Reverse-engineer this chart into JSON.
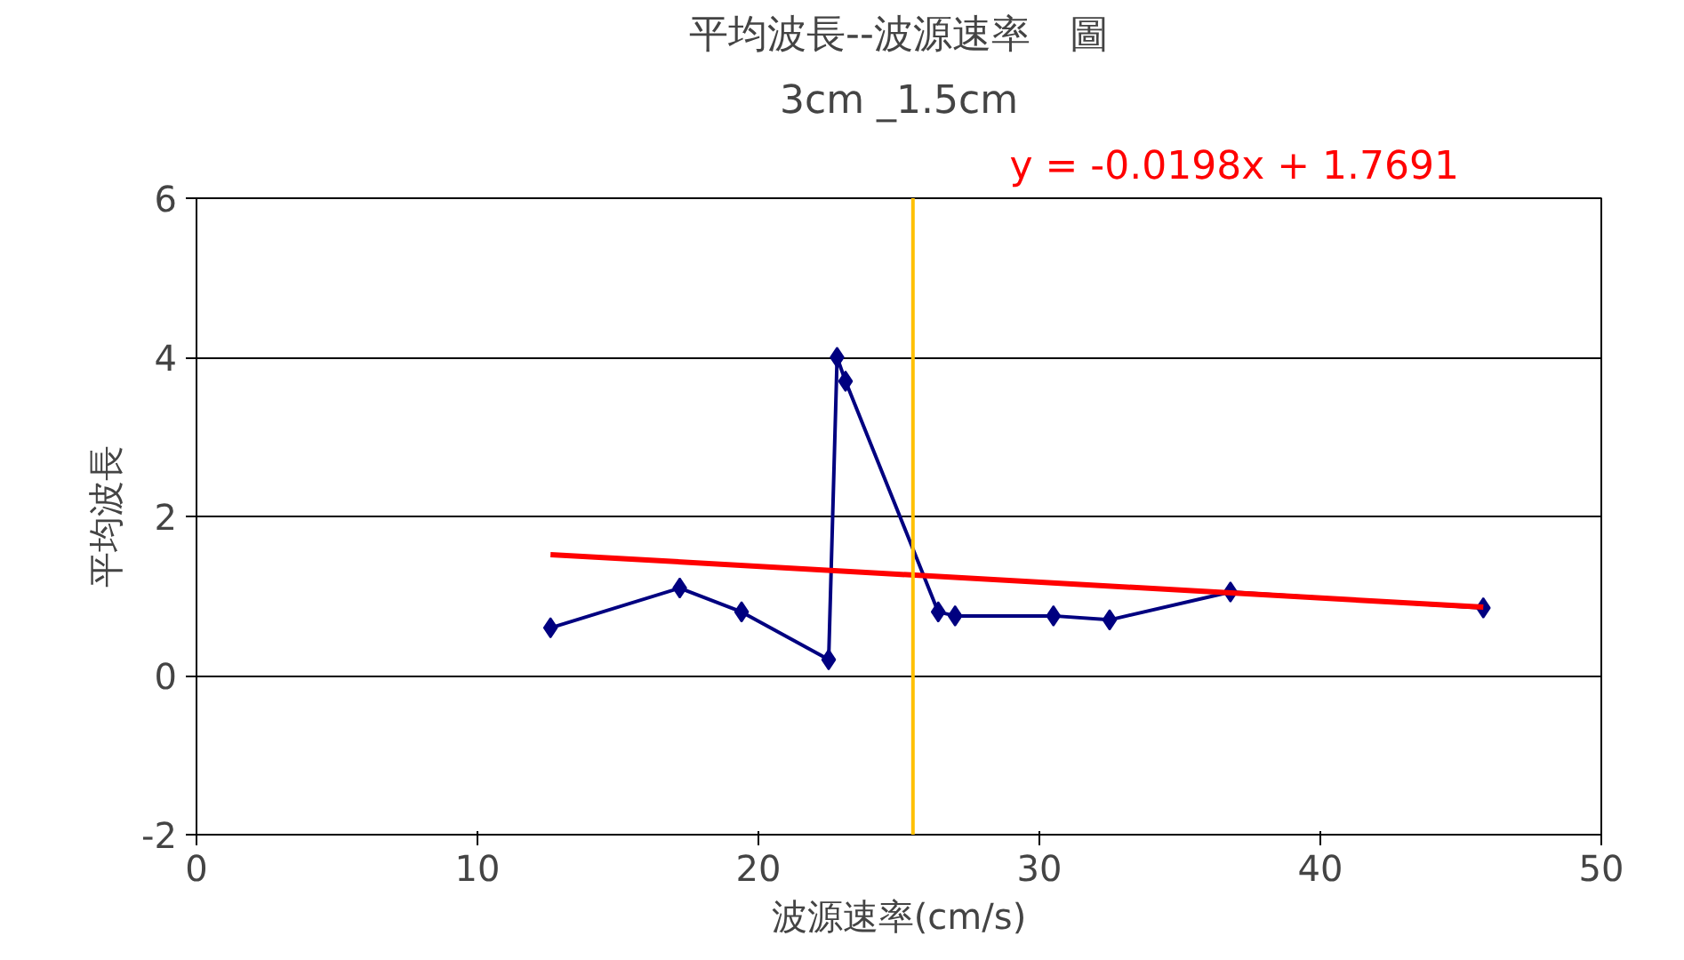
{
  "chart_data": {
    "type": "line",
    "title": "平均波長--波源速率　圖",
    "subtitle": "3cm _1.5cm",
    "xlabel": "波源速率(cm/s)",
    "ylabel": "平均波長",
    "series": [
      {
        "color": "#000080",
        "marker": "diamond",
        "x": [
          12.6,
          17.2,
          19.4,
          22.5,
          22.8,
          23.1,
          26.4,
          27.0,
          30.5,
          32.5,
          36.8,
          45.8
        ],
        "values": [
          0.6,
          1.1,
          0.8,
          0.2,
          4.0,
          3.7,
          0.8,
          0.75,
          0.75,
          0.7,
          1.05,
          0.85
        ]
      },
      {
        "color": "#ff0000",
        "marker": "none",
        "x": [
          12.6,
          45.8
        ],
        "values": [
          1.52,
          0.86
        ]
      }
    ],
    "xlim": [
      0,
      50
    ],
    "xticks": [
      0,
      10,
      20,
      30,
      40,
      50
    ],
    "ylim": [
      -2,
      6
    ],
    "yticks": [
      -2,
      0,
      2,
      4,
      6
    ],
    "grid": "y",
    "ref_lines": [
      {
        "axis": "x",
        "value": 25.5,
        "color": "#ffc000"
      }
    ],
    "annotations": [
      "y = -0.0198x + 1.7691"
    ]
  }
}
